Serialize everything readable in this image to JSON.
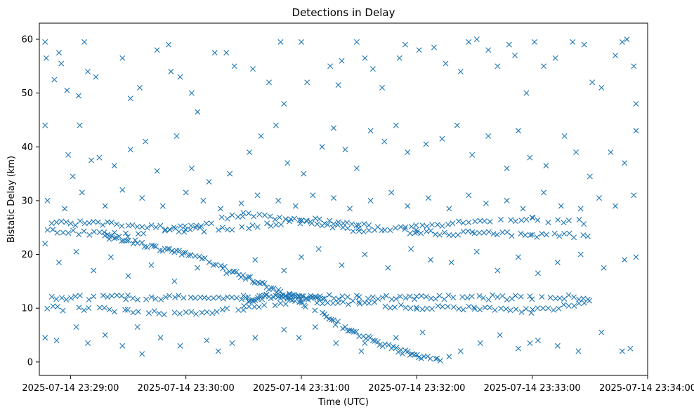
{
  "chart_data": {
    "type": "scatter",
    "title": "Detections in Delay",
    "xlabel": "Time (UTC)",
    "ylabel": "Bistatic Delay (km)",
    "marker": "x",
    "color": "#1f77b4",
    "x_unit": "minutes since 2025-07-14 23:28:00",
    "xlim": [
      0.73,
      6.0
    ],
    "ylim": [
      -2.5,
      63
    ],
    "xticks": [
      {
        "value": 1,
        "label": "2025-07-14 23:29:00"
      },
      {
        "value": 2,
        "label": "2025-07-14 23:30:00"
      },
      {
        "value": 3,
        "label": "2025-07-14 23:31:00"
      },
      {
        "value": 4,
        "label": "2025-07-14 23:32:00"
      },
      {
        "value": 5,
        "label": "2025-07-14 23:33:00"
      },
      {
        "value": 6,
        "label": "2025-07-14 23:34:00"
      }
    ],
    "yticks": [
      0,
      10,
      20,
      30,
      40,
      50,
      60
    ],
    "tracks": [
      {
        "name": "upper-track-a",
        "points": [
          [
            0.8,
            26.0
          ],
          [
            1.5,
            25.5
          ],
          [
            2.0,
            24.5
          ],
          [
            2.5,
            25.0
          ],
          [
            3.0,
            26.5
          ],
          [
            3.5,
            25.5
          ],
          [
            4.0,
            24.0
          ],
          [
            4.5,
            24.0
          ],
          [
            5.0,
            23.5
          ],
          [
            5.5,
            23.5
          ]
        ],
        "step": 0.04
      },
      {
        "name": "upper-track-b",
        "points": [
          [
            0.8,
            24.5
          ],
          [
            1.5,
            23.5
          ],
          [
            2.0,
            25.0
          ],
          [
            2.5,
            27.5
          ],
          [
            3.0,
            26.0
          ],
          [
            3.5,
            24.5
          ],
          [
            4.0,
            25.0
          ],
          [
            4.5,
            26.0
          ],
          [
            5.0,
            26.5
          ],
          [
            5.5,
            26.0
          ]
        ],
        "step": 0.045
      },
      {
        "name": "descending-track",
        "points": [
          [
            1.3,
            23.5
          ],
          [
            1.7,
            21.5
          ],
          [
            2.0,
            20.0
          ],
          [
            2.3,
            18.0
          ],
          [
            2.6,
            15.0
          ],
          [
            2.9,
            12.0
          ],
          [
            3.2,
            8.5
          ],
          [
            3.5,
            5.0
          ],
          [
            3.8,
            2.5
          ],
          [
            4.0,
            1.0
          ],
          [
            4.2,
            0.5
          ]
        ],
        "step": 0.02
      },
      {
        "name": "low-track-a",
        "points": [
          [
            0.8,
            12.0
          ],
          [
            1.5,
            12.0
          ],
          [
            2.0,
            12.0
          ],
          [
            2.5,
            12.0
          ],
          [
            3.0,
            12.2
          ],
          [
            3.5,
            12.0
          ],
          [
            4.0,
            12.0
          ],
          [
            4.5,
            12.0
          ],
          [
            5.0,
            12.0
          ],
          [
            5.5,
            12.0
          ]
        ],
        "step": 0.04
      },
      {
        "name": "low-track-b",
        "points": [
          [
            0.8,
            10.0
          ],
          [
            1.5,
            9.5
          ],
          [
            2.0,
            9.0
          ],
          [
            2.5,
            10.0
          ],
          [
            3.0,
            11.5
          ],
          [
            3.5,
            11.0
          ],
          [
            4.0,
            10.0
          ],
          [
            4.5,
            10.0
          ],
          [
            5.0,
            9.5
          ],
          [
            5.5,
            11.0
          ]
        ],
        "step": 0.045
      },
      {
        "name": "low-track-c",
        "points": [
          [
            2.5,
            11.5
          ],
          [
            2.8,
            12.5
          ],
          [
            3.0,
            12.2
          ],
          [
            3.2,
            11.5
          ]
        ],
        "step": 0.02
      }
    ],
    "scatter_points": [
      [
        0.78,
        59.5
      ],
      [
        0.79,
        56.5
      ],
      [
        0.9,
        57.5
      ],
      [
        0.86,
        52.5
      ],
      [
        1.12,
        59.5
      ],
      [
        1.07,
        49.5
      ],
      [
        1.15,
        54.0
      ],
      [
        1.22,
        53.0
      ],
      [
        0.92,
        55.5
      ],
      [
        0.97,
        50.5
      ],
      [
        1.45,
        56.5
      ],
      [
        1.52,
        49.0
      ],
      [
        1.6,
        51.0
      ],
      [
        1.75,
        58.0
      ],
      [
        1.85,
        59.0
      ],
      [
        1.87,
        54.0
      ],
      [
        1.95,
        53.0
      ],
      [
        2.05,
        50.0
      ],
      [
        2.1,
        46.5
      ],
      [
        2.25,
        57.5
      ],
      [
        2.35,
        57.5
      ],
      [
        2.42,
        55.0
      ],
      [
        2.58,
        54.5
      ],
      [
        2.72,
        52.0
      ],
      [
        2.82,
        59.5
      ],
      [
        2.85,
        48.0
      ],
      [
        3.0,
        59.5
      ],
      [
        3.05,
        52.0
      ],
      [
        3.25,
        55.0
      ],
      [
        3.32,
        51.5
      ],
      [
        3.35,
        56.0
      ],
      [
        3.48,
        59.5
      ],
      [
        3.55,
        56.5
      ],
      [
        3.62,
        54.5
      ],
      [
        3.7,
        51.0
      ],
      [
        3.85,
        56.5
      ],
      [
        3.9,
        59.0
      ],
      [
        4.02,
        58.0
      ],
      [
        4.15,
        58.5
      ],
      [
        4.25,
        55.5
      ],
      [
        4.38,
        54.0
      ],
      [
        4.45,
        59.5
      ],
      [
        4.52,
        60.0
      ],
      [
        4.62,
        58.0
      ],
      [
        4.7,
        55.0
      ],
      [
        4.8,
        59.0
      ],
      [
        4.85,
        57.0
      ],
      [
        4.95,
        50.0
      ],
      [
        5.02,
        59.5
      ],
      [
        5.1,
        55.0
      ],
      [
        5.2,
        56.5
      ],
      [
        5.35,
        59.5
      ],
      [
        5.45,
        59.0
      ],
      [
        5.52,
        52.0
      ],
      [
        5.6,
        51.0
      ],
      [
        5.72,
        57.0
      ],
      [
        5.78,
        59.5
      ],
      [
        5.82,
        60.0
      ],
      [
        5.88,
        55.0
      ],
      [
        5.9,
        48.0
      ],
      [
        0.78,
        44.0
      ],
      [
        0.98,
        38.5
      ],
      [
        1.02,
        34.5
      ],
      [
        1.08,
        44.0
      ],
      [
        1.18,
        37.5
      ],
      [
        1.25,
        38.0
      ],
      [
        1.38,
        36.5
      ],
      [
        1.52,
        39.5
      ],
      [
        1.65,
        41.0
      ],
      [
        1.75,
        35.5
      ],
      [
        1.92,
        42.0
      ],
      [
        2.05,
        36.0
      ],
      [
        2.2,
        33.5
      ],
      [
        2.38,
        35.0
      ],
      [
        2.55,
        39.0
      ],
      [
        2.65,
        42.0
      ],
      [
        2.78,
        44.0
      ],
      [
        2.88,
        37.0
      ],
      [
        3.02,
        35.0
      ],
      [
        3.18,
        40.0
      ],
      [
        3.28,
        43.5
      ],
      [
        3.38,
        39.5
      ],
      [
        3.48,
        36.0
      ],
      [
        3.6,
        43.0
      ],
      [
        3.72,
        41.0
      ],
      [
        3.82,
        44.0
      ],
      [
        3.92,
        39.0
      ],
      [
        4.08,
        40.5
      ],
      [
        4.22,
        41.5
      ],
      [
        4.35,
        44.0
      ],
      [
        4.48,
        38.5
      ],
      [
        4.62,
        42.0
      ],
      [
        4.78,
        36.0
      ],
      [
        4.88,
        43.0
      ],
      [
        4.98,
        38.0
      ],
      [
        5.12,
        36.5
      ],
      [
        5.28,
        42.0
      ],
      [
        5.38,
        39.0
      ],
      [
        5.5,
        34.5
      ],
      [
        5.68,
        39.0
      ],
      [
        5.8,
        37.0
      ],
      [
        5.9,
        43.0
      ],
      [
        0.8,
        30.0
      ],
      [
        0.95,
        28.5
      ],
      [
        1.1,
        31.5
      ],
      [
        1.3,
        29.0
      ],
      [
        1.45,
        32.0
      ],
      [
        1.62,
        30.5
      ],
      [
        1.8,
        29.0
      ],
      [
        2.0,
        31.5
      ],
      [
        2.15,
        30.0
      ],
      [
        2.3,
        28.5
      ],
      [
        2.48,
        29.5
      ],
      [
        2.62,
        31.0
      ],
      [
        2.8,
        30.0
      ],
      [
        2.95,
        29.0
      ],
      [
        3.1,
        31.0
      ],
      [
        3.28,
        30.5
      ],
      [
        3.42,
        28.5
      ],
      [
        3.6,
        30.0
      ],
      [
        3.78,
        31.5
      ],
      [
        3.92,
        29.0
      ],
      [
        4.1,
        30.5
      ],
      [
        4.28,
        28.5
      ],
      [
        4.45,
        31.0
      ],
      [
        4.6,
        29.5
      ],
      [
        4.78,
        30.0
      ],
      [
        4.92,
        28.5
      ],
      [
        5.1,
        31.5
      ],
      [
        5.25,
        29.0
      ],
      [
        5.42,
        28.5
      ],
      [
        5.58,
        30.5
      ],
      [
        5.72,
        29.0
      ],
      [
        5.88,
        31.0
      ],
      [
        0.78,
        22.0
      ],
      [
        0.9,
        18.5
      ],
      [
        1.05,
        20.5
      ],
      [
        1.2,
        17.0
      ],
      [
        1.35,
        19.5
      ],
      [
        1.5,
        16.0
      ],
      [
        1.7,
        18.0
      ],
      [
        1.9,
        15.0
      ],
      [
        2.1,
        17.5
      ],
      [
        2.35,
        16.5
      ],
      [
        2.6,
        19.0
      ],
      [
        2.85,
        17.0
      ],
      [
        3.0,
        19.5
      ],
      [
        3.15,
        21.0
      ],
      [
        3.35,
        18.0
      ],
      [
        3.55,
        20.0
      ],
      [
        3.75,
        17.5
      ],
      [
        3.95,
        21.0
      ],
      [
        4.12,
        19.0
      ],
      [
        4.3,
        18.5
      ],
      [
        4.52,
        20.5
      ],
      [
        4.7,
        17.0
      ],
      [
        4.88,
        19.5
      ],
      [
        5.05,
        16.5
      ],
      [
        5.22,
        18.5
      ],
      [
        5.42,
        20.0
      ],
      [
        5.62,
        17.5
      ],
      [
        5.8,
        19.0
      ],
      [
        5.9,
        19.5
      ],
      [
        0.78,
        4.5
      ],
      [
        0.88,
        4.0
      ],
      [
        1.05,
        6.5
      ],
      [
        1.15,
        3.5
      ],
      [
        1.3,
        5.0
      ],
      [
        1.45,
        3.0
      ],
      [
        1.58,
        6.5
      ],
      [
        1.78,
        4.5
      ],
      [
        1.95,
        3.0
      ],
      [
        2.18,
        4.0
      ],
      [
        2.4,
        3.5
      ],
      [
        2.6,
        4.5
      ],
      [
        2.85,
        6.0
      ],
      [
        2.98,
        4.5
      ],
      [
        3.12,
        6.5
      ],
      [
        3.3,
        3.5
      ],
      [
        3.55,
        3.5
      ],
      [
        3.82,
        4.5
      ],
      [
        4.05,
        5.5
      ],
      [
        4.28,
        1.0
      ],
      [
        4.38,
        2.0
      ],
      [
        4.55,
        3.5
      ],
      [
        4.72,
        5.0
      ],
      [
        4.88,
        2.5
      ],
      [
        5.05,
        4.0
      ],
      [
        5.22,
        3.0
      ],
      [
        5.4,
        2.0
      ],
      [
        5.6,
        5.5
      ],
      [
        5.78,
        2.0
      ],
      [
        5.85,
        2.5
      ],
      [
        1.62,
        1.5
      ],
      [
        2.28,
        2.0
      ],
      [
        3.52,
        2.0
      ],
      [
        4.98,
        3.5
      ]
    ]
  }
}
